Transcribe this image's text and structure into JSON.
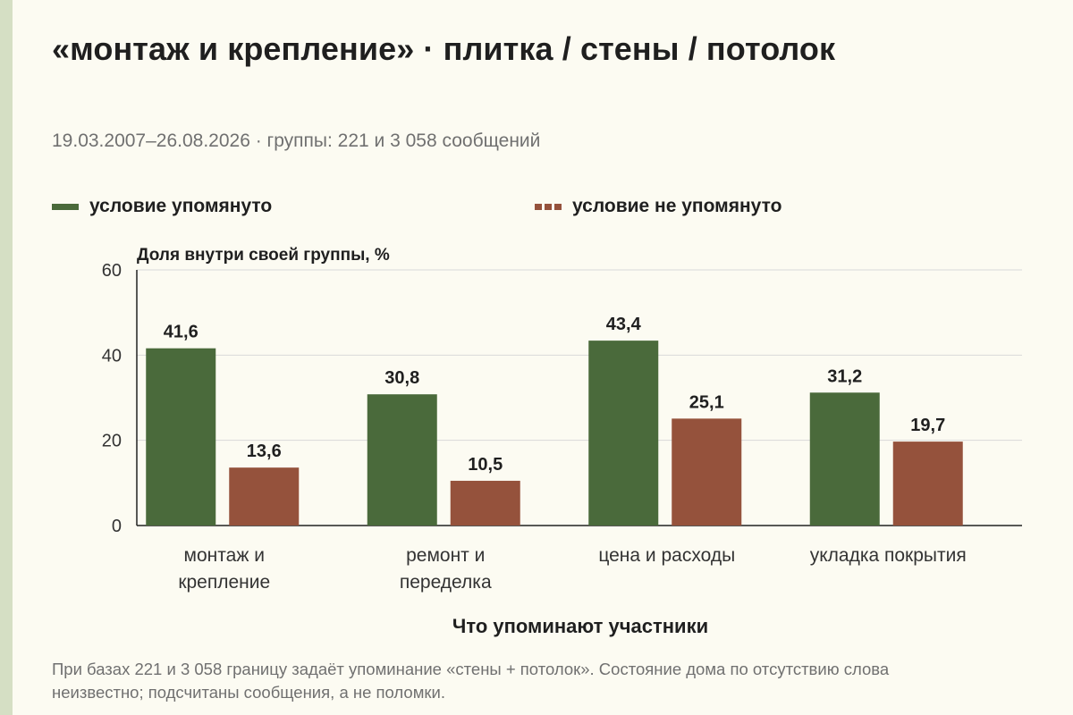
{
  "title": "«монтаж и крепление» · плитка / стены / потолок",
  "subtitle": "19.03.2007–26.08.2026 · группы: 221 и 3 058 сообщений",
  "legend": {
    "mentioned": "условие упомянуто",
    "not_mentioned": "условие не упомянуто"
  },
  "colors": {
    "mentioned": "#4a6a3b",
    "not_mentioned": "#95523c",
    "background": "#fcfbf2",
    "grid": "#d9d9d9",
    "stripe": "#d5dfc4"
  },
  "footnote": "При базах 221 и 3 058 границу задаёт упоминание «стены + потолок». Состояние дома по отсутствию слова неизвестно; подсчитаны сообщения, а не поломки.",
  "chart_data": {
    "type": "bar",
    "ylabel": "Доля внутри своей группы, %",
    "xlabel": "Что упоминают участники",
    "ylim": [
      0,
      60
    ],
    "yticks": [
      0,
      20,
      40,
      60
    ],
    "grid": true,
    "legend_position": "top",
    "categories": [
      [
        "монтаж и",
        "крепление"
      ],
      [
        "ремонт и",
        "переделка"
      ],
      [
        "цена и расходы"
      ],
      [
        "укладка покрытия"
      ]
    ],
    "series": [
      {
        "name": "условие упомянуто",
        "color": "#4a6a3b",
        "values": [
          41.6,
          30.8,
          43.4,
          31.2
        ],
        "labels": [
          "41,6",
          "30,8",
          "43,4",
          "31,2"
        ]
      },
      {
        "name": "условие не упомянуто",
        "color": "#95523c",
        "values": [
          13.6,
          10.5,
          25.1,
          19.7
        ],
        "labels": [
          "13,6",
          "10,5",
          "25,1",
          "19,7"
        ]
      }
    ]
  }
}
